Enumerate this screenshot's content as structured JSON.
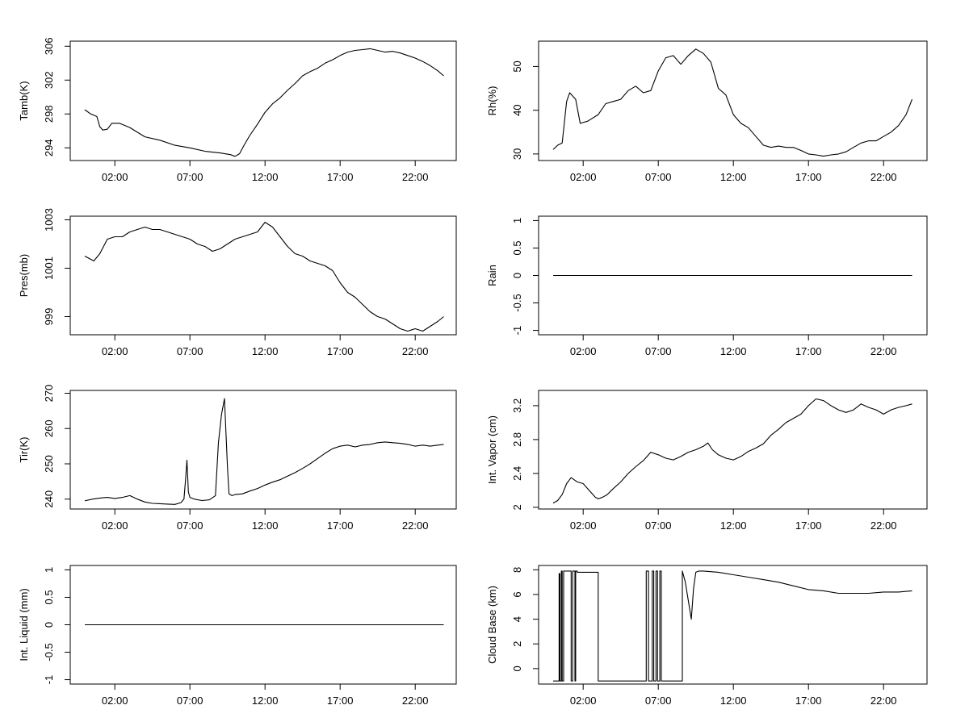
{
  "figure": {
    "x_ticks": [
      "02:00",
      "07:00",
      "12:00",
      "17:00",
      "22:00"
    ],
    "x_range_hours": [
      0,
      24
    ],
    "line_color": "#000000"
  },
  "chart_data": [
    {
      "id": "tamb",
      "type": "line",
      "ylabel": "Tamb(K)",
      "y_ticks": [
        294,
        298,
        302,
        306
      ],
      "ylim": [
        292.5,
        306.6
      ],
      "x_hours": [
        0.0,
        0.4,
        0.8,
        1.0,
        1.2,
        1.5,
        1.8,
        2.3,
        3.0,
        4.0,
        5.0,
        6.0,
        7.0,
        8.0,
        9.0,
        9.7,
        10.0,
        10.3,
        10.6,
        11.0,
        11.5,
        12.0,
        12.5,
        13.0,
        13.5,
        14.0,
        14.5,
        15.0,
        15.5,
        16.0,
        16.5,
        17.0,
        17.5,
        18.0,
        18.5,
        19.0,
        19.5,
        20.0,
        20.5,
        21.0,
        21.5,
        22.0,
        22.5,
        23.0,
        23.5,
        23.9
      ],
      "values": [
        298.5,
        298.0,
        297.7,
        296.5,
        296.1,
        296.2,
        296.9,
        296.9,
        296.4,
        295.3,
        294.9,
        294.3,
        294.0,
        293.6,
        293.4,
        293.2,
        293.0,
        293.3,
        294.3,
        295.5,
        296.8,
        298.2,
        299.2,
        299.9,
        300.8,
        301.6,
        302.5,
        303.0,
        303.4,
        304.0,
        304.4,
        304.9,
        305.3,
        305.5,
        305.6,
        305.7,
        305.5,
        305.3,
        305.4,
        305.2,
        304.9,
        304.6,
        304.2,
        303.7,
        303.1,
        302.5
      ]
    },
    {
      "id": "rh",
      "type": "line",
      "ylabel": "Rh(%)",
      "y_ticks": [
        30,
        40,
        50
      ],
      "ylim": [
        28.5,
        55.8
      ],
      "x_hours": [
        0.0,
        0.3,
        0.6,
        0.9,
        1.1,
        1.5,
        1.8,
        2.3,
        3.0,
        3.5,
        4.0,
        4.5,
        5.0,
        5.5,
        6.0,
        6.5,
        7.0,
        7.5,
        8.0,
        8.5,
        9.0,
        9.5,
        10.0,
        10.5,
        11.0,
        11.5,
        12.0,
        12.5,
        13.0,
        13.5,
        14.0,
        14.5,
        15.0,
        15.5,
        16.0,
        16.5,
        17.0,
        17.5,
        18.0,
        18.5,
        19.0,
        19.5,
        20.0,
        20.5,
        21.0,
        21.5,
        22.0,
        22.5,
        23.0,
        23.5,
        23.9
      ],
      "values": [
        31.0,
        32.0,
        32.5,
        42.0,
        44.0,
        42.5,
        37.0,
        37.5,
        39.0,
        41.5,
        42.0,
        42.5,
        44.5,
        45.5,
        44.0,
        44.5,
        49.0,
        52.0,
        52.5,
        50.5,
        52.5,
        54.0,
        53.0,
        51.0,
        45.0,
        43.5,
        39.0,
        37.0,
        36.0,
        34.0,
        32.0,
        31.5,
        31.8,
        31.5,
        31.5,
        30.8,
        30.0,
        29.8,
        29.5,
        29.8,
        30.0,
        30.5,
        31.5,
        32.5,
        33.0,
        33.0,
        34.0,
        35.0,
        36.5,
        39.0,
        42.5
      ]
    },
    {
      "id": "pres",
      "type": "line",
      "ylabel": "Pres(mb)",
      "y_ticks": [
        999,
        1001,
        1003
      ],
      "ylim": [
        998.25,
        1003.15
      ],
      "x_hours": [
        0.0,
        0.3,
        0.6,
        1.0,
        1.5,
        2.0,
        2.5,
        3.0,
        3.5,
        4.0,
        4.5,
        5.0,
        5.5,
        6.0,
        6.5,
        7.0,
        7.5,
        8.0,
        8.5,
        9.0,
        9.5,
        10.0,
        10.5,
        11.0,
        11.5,
        12.0,
        12.5,
        13.0,
        13.5,
        14.0,
        14.5,
        15.0,
        15.5,
        16.0,
        16.5,
        17.0,
        17.5,
        18.0,
        18.5,
        19.0,
        19.5,
        20.0,
        20.5,
        21.0,
        21.5,
        22.0,
        22.5,
        23.0,
        23.5,
        23.9
      ],
      "values": [
        1001.5,
        1001.4,
        1001.3,
        1001.6,
        1002.2,
        1002.3,
        1002.3,
        1002.5,
        1002.6,
        1002.7,
        1002.6,
        1002.6,
        1002.5,
        1002.4,
        1002.3,
        1002.2,
        1002.0,
        1001.9,
        1001.7,
        1001.8,
        1002.0,
        1002.2,
        1002.3,
        1002.4,
        1002.5,
        1002.9,
        1002.7,
        1002.3,
        1001.9,
        1001.6,
        1001.5,
        1001.3,
        1001.2,
        1001.1,
        1000.9,
        1000.4,
        1000.0,
        999.8,
        999.5,
        999.2,
        999.0,
        998.9,
        998.7,
        998.5,
        998.4,
        998.5,
        998.4,
        998.6,
        998.8,
        999.0
      ]
    },
    {
      "id": "rain",
      "type": "line",
      "ylabel": "Rain",
      "y_ticks": [
        -1.0,
        -0.5,
        0.0,
        0.5,
        1.0
      ],
      "ylim": [
        -1.08,
        1.08
      ],
      "x_hours": [
        0.0,
        23.9
      ],
      "values": [
        0.0,
        0.0
      ]
    },
    {
      "id": "tir",
      "type": "line",
      "ylabel": "Tir(K)",
      "y_ticks": [
        240,
        250,
        260,
        270
      ],
      "ylim": [
        237.2,
        270.8
      ],
      "x_hours": [
        0.0,
        0.5,
        1.0,
        1.5,
        2.0,
        2.5,
        3.0,
        3.5,
        4.0,
        4.5,
        5.0,
        5.5,
        6.0,
        6.4,
        6.6,
        6.7,
        6.8,
        6.9,
        7.0,
        7.3,
        7.8,
        8.3,
        8.7,
        8.9,
        9.1,
        9.3,
        9.5,
        9.6,
        9.8,
        10.0,
        10.5,
        11.0,
        11.5,
        12.0,
        12.5,
        13.0,
        13.5,
        14.0,
        14.5,
        15.0,
        15.5,
        16.0,
        16.5,
        17.0,
        17.5,
        18.0,
        18.5,
        19.0,
        19.5,
        20.0,
        20.5,
        21.0,
        21.5,
        22.0,
        22.5,
        23.0,
        23.5,
        23.9
      ],
      "values": [
        239.5,
        240.0,
        240.3,
        240.5,
        240.2,
        240.5,
        241.0,
        240.0,
        239.2,
        238.8,
        238.7,
        238.6,
        238.5,
        239.0,
        240.0,
        245.0,
        251.0,
        242.0,
        240.5,
        240.0,
        239.6,
        239.8,
        241.0,
        256.0,
        264.0,
        268.5,
        249.0,
        241.5,
        241.0,
        241.3,
        241.5,
        242.3,
        243.0,
        244.0,
        244.8,
        245.5,
        246.5,
        247.5,
        248.7,
        250.0,
        251.5,
        253.0,
        254.3,
        255.0,
        255.3,
        254.8,
        255.3,
        255.5,
        256.0,
        256.2,
        256.0,
        255.8,
        255.5,
        255.0,
        255.3,
        255.0,
        255.3,
        255.5
      ]
    },
    {
      "id": "vapor",
      "type": "line",
      "ylabel": "Int. Vapor (cm)",
      "y_ticks": [
        2.0,
        2.4,
        2.8,
        3.2
      ],
      "ylim": [
        1.98,
        3.38
      ],
      "x_hours": [
        0.0,
        0.3,
        0.6,
        0.9,
        1.2,
        1.6,
        2.0,
        2.4,
        2.8,
        3.0,
        3.3,
        3.6,
        4.0,
        4.5,
        5.0,
        5.5,
        6.0,
        6.5,
        7.0,
        7.5,
        8.0,
        8.5,
        9.0,
        9.5,
        10.0,
        10.3,
        10.6,
        11.0,
        11.5,
        12.0,
        12.5,
        13.0,
        13.5,
        14.0,
        14.5,
        15.0,
        15.5,
        16.0,
        16.5,
        17.0,
        17.5,
        18.0,
        18.5,
        19.0,
        19.5,
        20.0,
        20.5,
        21.0,
        21.5,
        22.0,
        22.5,
        23.0,
        23.5,
        23.9
      ],
      "values": [
        2.05,
        2.08,
        2.15,
        2.28,
        2.35,
        2.3,
        2.28,
        2.2,
        2.12,
        2.1,
        2.12,
        2.15,
        2.22,
        2.3,
        2.4,
        2.48,
        2.55,
        2.65,
        2.62,
        2.58,
        2.56,
        2.6,
        2.65,
        2.68,
        2.72,
        2.76,
        2.68,
        2.62,
        2.58,
        2.56,
        2.6,
        2.66,
        2.7,
        2.75,
        2.85,
        2.92,
        3.0,
        3.05,
        3.1,
        3.2,
        3.28,
        3.26,
        3.2,
        3.15,
        3.12,
        3.15,
        3.22,
        3.18,
        3.15,
        3.1,
        3.15,
        3.18,
        3.2,
        3.22
      ]
    },
    {
      "id": "liquid",
      "type": "line",
      "ylabel": "Int. Liquid (mm)",
      "y_ticks": [
        -1.0,
        -0.5,
        0.0,
        0.5,
        1.0
      ],
      "ylim": [
        -1.08,
        1.08
      ],
      "x_hours": [
        0.0,
        23.9
      ],
      "values": [
        0.0,
        0.0
      ]
    },
    {
      "id": "cloudbase",
      "type": "line",
      "ylabel": "Cloud Base (km)",
      "y_ticks": [
        0,
        2,
        4,
        6,
        8
      ],
      "ylim": [
        -1.25,
        8.35
      ],
      "x_hours": [
        0.0,
        0.4,
        0.4,
        0.45,
        0.45,
        0.55,
        0.55,
        0.6,
        0.6,
        0.7,
        0.7,
        1.2,
        1.2,
        1.3,
        1.3,
        1.45,
        1.45,
        1.5,
        1.5,
        1.6,
        1.6,
        3.0,
        3.0,
        6.2,
        6.2,
        6.35,
        6.35,
        6.6,
        6.6,
        6.7,
        6.7,
        6.85,
        6.85,
        6.95,
        6.95,
        7.1,
        7.1,
        7.2,
        7.2,
        7.3,
        7.3,
        8.6,
        8.6,
        8.8,
        9.0,
        9.2,
        9.35,
        9.5,
        9.7,
        10.0,
        11.0,
        12.0,
        13.0,
        14.0,
        15.0,
        16.0,
        17.0,
        18.0,
        19.0,
        20.0,
        21.0,
        22.0,
        23.0,
        23.9
      ],
      "values": [
        -1.0,
        -1.0,
        7.7,
        7.7,
        -1.0,
        -1.0,
        7.9,
        7.9,
        -1.0,
        -1.0,
        7.9,
        7.9,
        -1.0,
        -1.0,
        7.9,
        7.9,
        -1.0,
        -1.0,
        7.9,
        7.9,
        7.8,
        7.8,
        -1.0,
        -1.0,
        7.9,
        7.9,
        -1.0,
        -1.0,
        7.9,
        7.9,
        -1.0,
        -1.0,
        7.9,
        7.9,
        -1.0,
        -1.0,
        7.9,
        7.9,
        -1.0,
        -1.0,
        -1.0,
        -1.0,
        7.9,
        7.0,
        5.5,
        4.0,
        6.5,
        7.8,
        7.9,
        7.9,
        7.8,
        7.6,
        7.4,
        7.2,
        7.0,
        6.7,
        6.4,
        6.3,
        6.1,
        6.1,
        6.1,
        6.2,
        6.2,
        6.3
      ]
    }
  ]
}
